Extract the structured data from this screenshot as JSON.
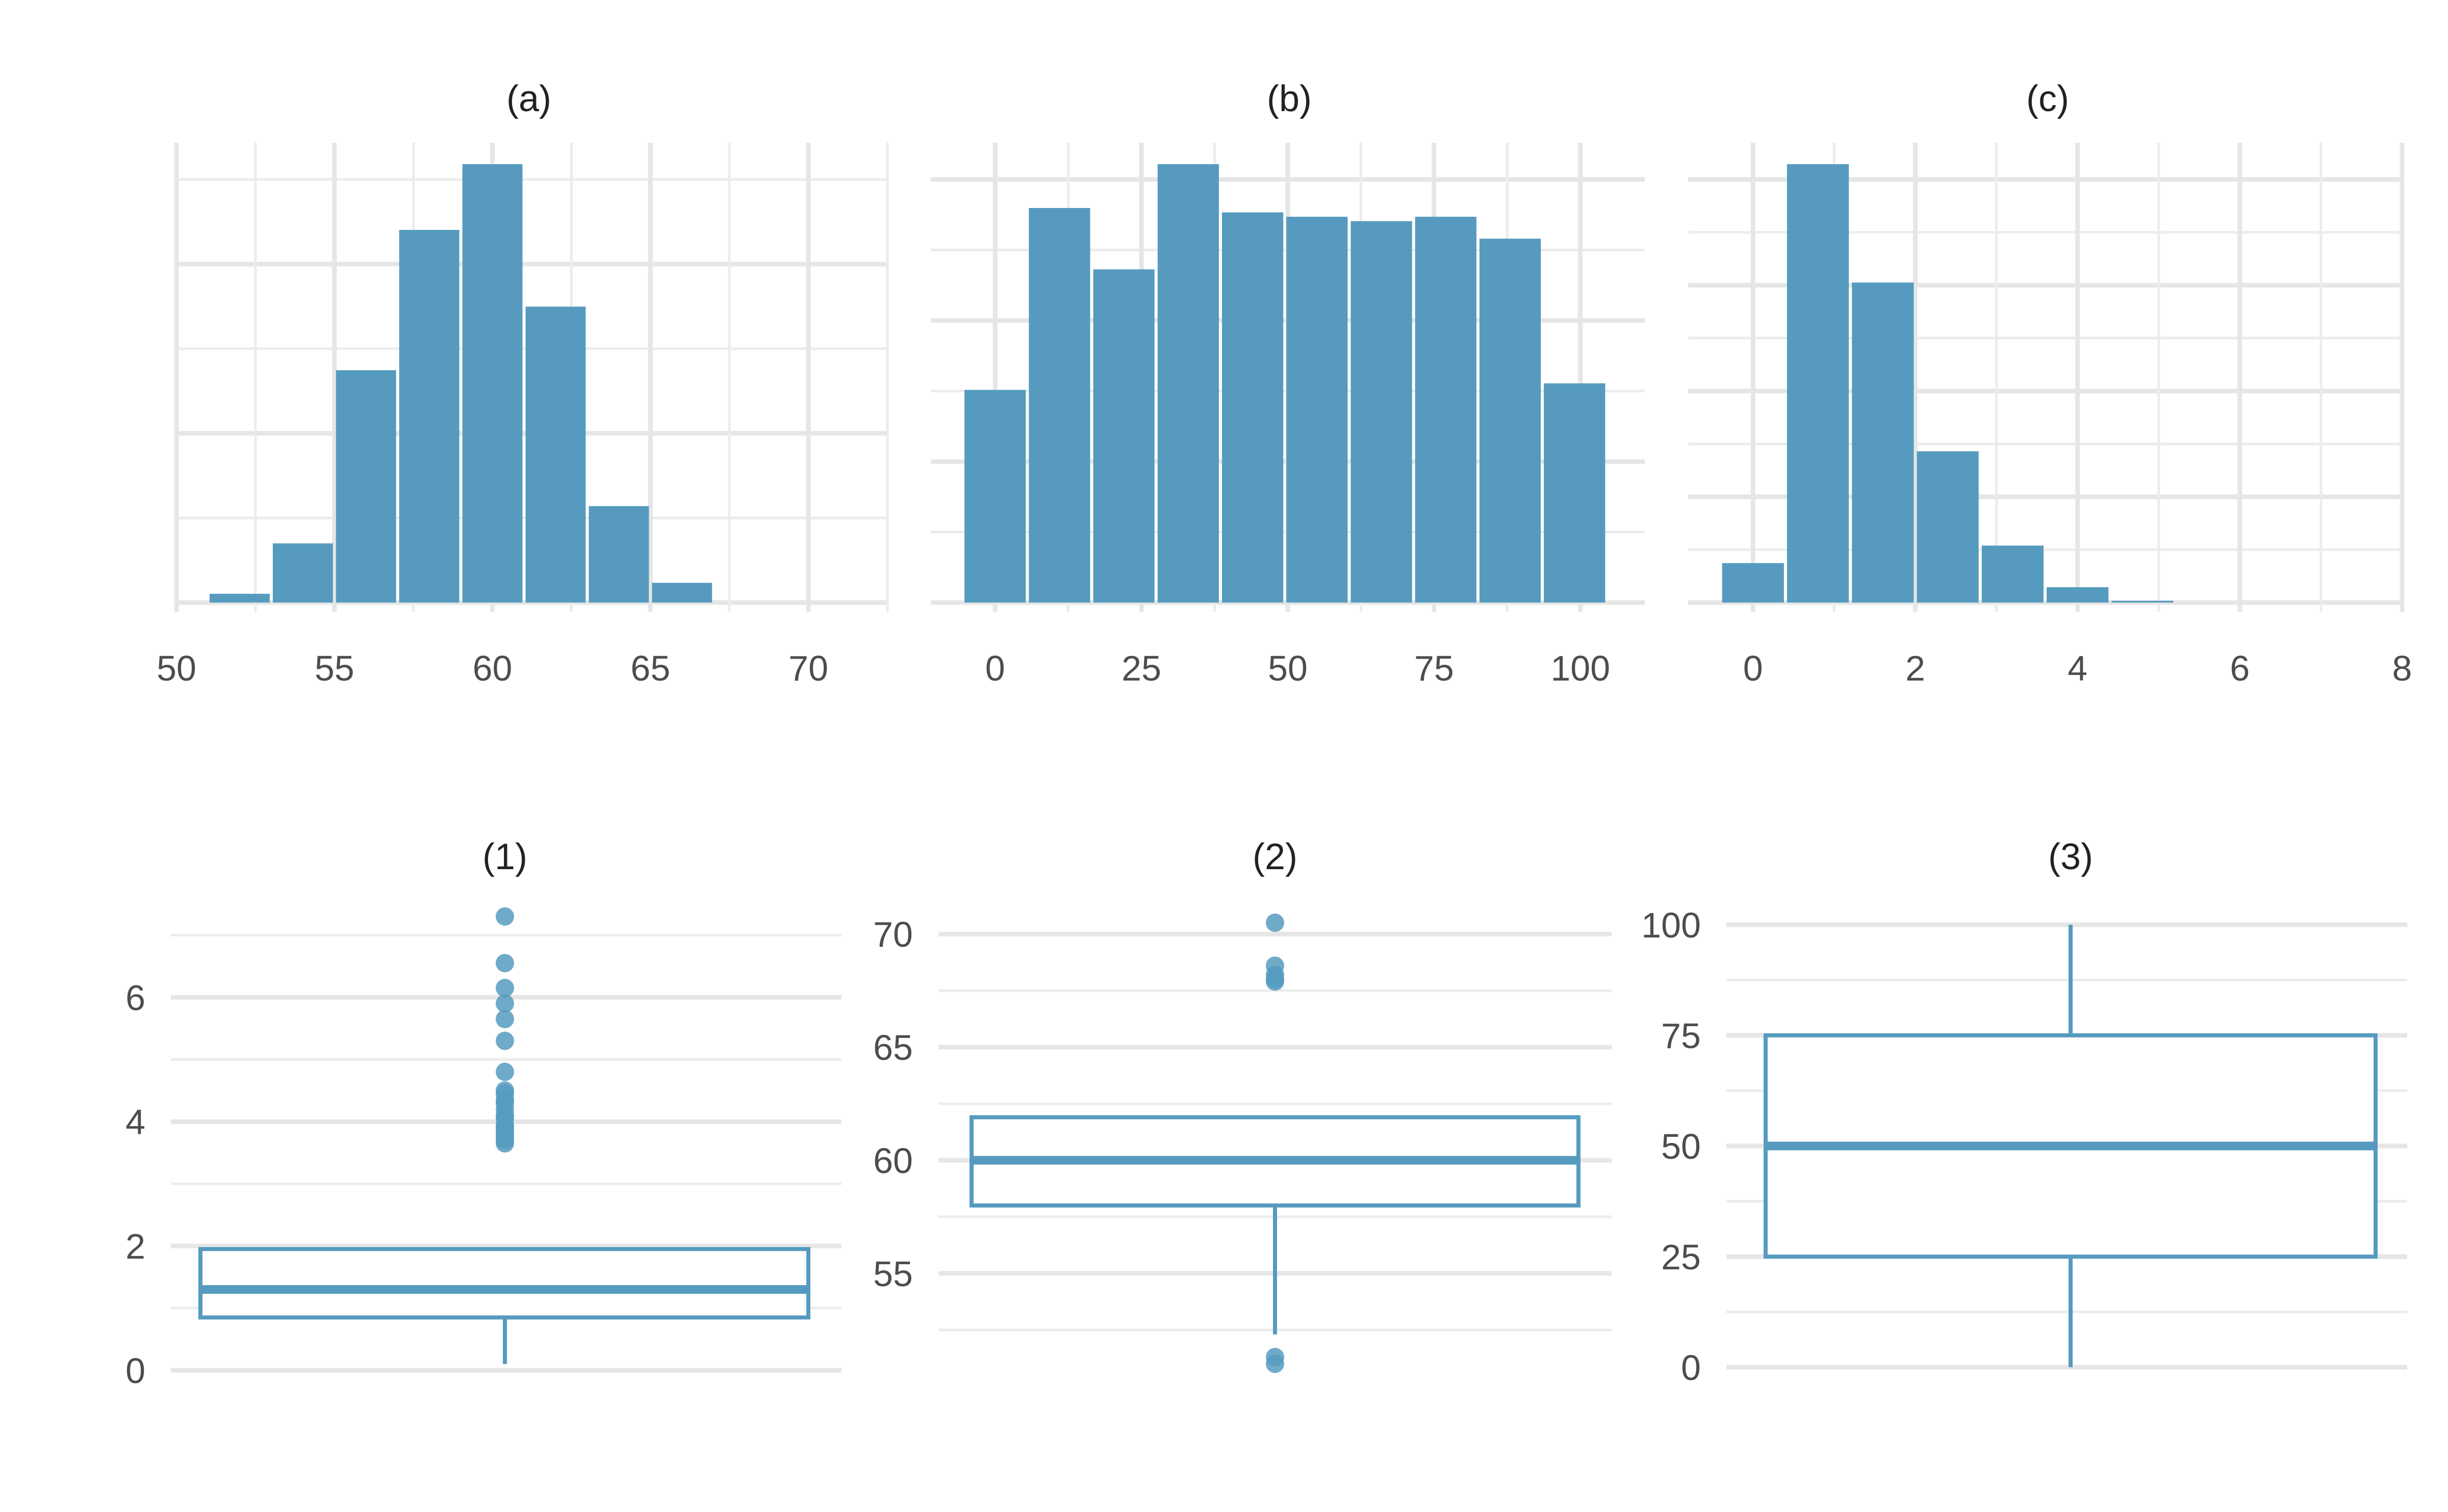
{
  "colors": {
    "fill": "#569bbf",
    "stroke": "#569bbf",
    "grid": "#e6e6e6",
    "text": "#4d4d4d"
  },
  "chart_data": [
    {
      "id": "a",
      "type": "histogram",
      "title": "(a)",
      "x_ticks": [
        "50",
        "55",
        "60",
        "65",
        "70"
      ],
      "xlim": [
        50,
        72.5
      ],
      "ylim": [
        0,
        1
      ],
      "bins": [
        {
          "x0": 51,
          "x1": 53,
          "value": 0.02
        },
        {
          "x0": 53,
          "x1": 55,
          "value": 0.135
        },
        {
          "x0": 55,
          "x1": 57,
          "value": 0.53
        },
        {
          "x0": 57,
          "x1": 59,
          "value": 0.85
        },
        {
          "x0": 59,
          "x1": 61,
          "value": 1.0
        },
        {
          "x0": 61,
          "x1": 63,
          "value": 0.675
        },
        {
          "x0": 63,
          "x1": 65,
          "value": 0.22
        },
        {
          "x0": 65,
          "x1": 67,
          "value": 0.045
        }
      ]
    },
    {
      "id": "b",
      "type": "histogram",
      "title": "(b)",
      "x_ticks": [
        "0",
        "25",
        "50",
        "75",
        "100"
      ],
      "xlim": [
        -11,
        111
      ],
      "ylim": [
        0,
        1
      ],
      "bins": [
        {
          "x0": -5.5,
          "x1": 5.5,
          "value": 0.485
        },
        {
          "x0": 5.5,
          "x1": 16.5,
          "value": 0.9
        },
        {
          "x0": 16.5,
          "x1": 27.5,
          "value": 0.76
        },
        {
          "x0": 27.5,
          "x1": 38.5,
          "value": 1.0
        },
        {
          "x0": 38.5,
          "x1": 49.5,
          "value": 0.89
        },
        {
          "x0": 49.5,
          "x1": 60.5,
          "value": 0.88
        },
        {
          "x0": 60.5,
          "x1": 71.5,
          "value": 0.87
        },
        {
          "x0": 71.5,
          "x1": 82.5,
          "value": 0.88
        },
        {
          "x0": 82.5,
          "x1": 93.5,
          "value": 0.83
        },
        {
          "x0": 93.5,
          "x1": 104.5,
          "value": 0.5
        }
      ]
    },
    {
      "id": "c",
      "type": "histogram",
      "title": "(c)",
      "x_ticks": [
        "0",
        "2",
        "4",
        "6",
        "8"
      ],
      "xlim": [
        -0.8,
        8
      ],
      "ylim": [
        0,
        1
      ],
      "bins": [
        {
          "x0": -0.4,
          "x1": 0.4,
          "value": 0.09
        },
        {
          "x0": 0.4,
          "x1": 1.2,
          "value": 1.0
        },
        {
          "x0": 1.2,
          "x1": 2.0,
          "value": 0.73
        },
        {
          "x0": 2.0,
          "x1": 2.8,
          "value": 0.345
        },
        {
          "x0": 2.8,
          "x1": 3.6,
          "value": 0.13
        },
        {
          "x0": 3.6,
          "x1": 4.4,
          "value": 0.035
        },
        {
          "x0": 4.4,
          "x1": 5.2,
          "value": 0.004
        }
      ]
    },
    {
      "id": "1",
      "type": "boxplot",
      "title": "(1)",
      "y_ticks": [
        "0",
        "2",
        "4",
        "6"
      ],
      "ylim": [
        -0.1,
        7.3
      ],
      "q1": 0.85,
      "median": 1.3,
      "q3": 1.95,
      "whisker_low": 0.1,
      "whisker_high": 1.95,
      "outliers": [
        7.3,
        6.55,
        6.15,
        5.9,
        5.65,
        5.3,
        4.8,
        4.5,
        4.45,
        4.35,
        4.3,
        4.2,
        4.1,
        4.05,
        3.95,
        3.9,
        3.85,
        3.8,
        3.75,
        3.7,
        3.65
      ]
    },
    {
      "id": "2",
      "type": "boxplot",
      "title": "(2)",
      "y_ticks": [
        "55",
        "60",
        "65",
        "70"
      ],
      "ylim": [
        51,
        70.5
      ],
      "q1": 58,
      "median": 60,
      "q3": 61.9,
      "whisker_low": 52.3,
      "whisker_high": 61.9,
      "outliers": [
        70.5,
        68.6,
        68.2,
        68.0,
        67.9,
        51.3,
        51.0
      ]
    },
    {
      "id": "3",
      "type": "boxplot",
      "title": "(3)",
      "y_ticks": [
        "0",
        "25",
        "50",
        "75",
        "100"
      ],
      "ylim": [
        0,
        100
      ],
      "q1": 25,
      "median": 50,
      "q3": 75,
      "whisker_low": 0,
      "whisker_high": 100,
      "outliers": []
    }
  ]
}
